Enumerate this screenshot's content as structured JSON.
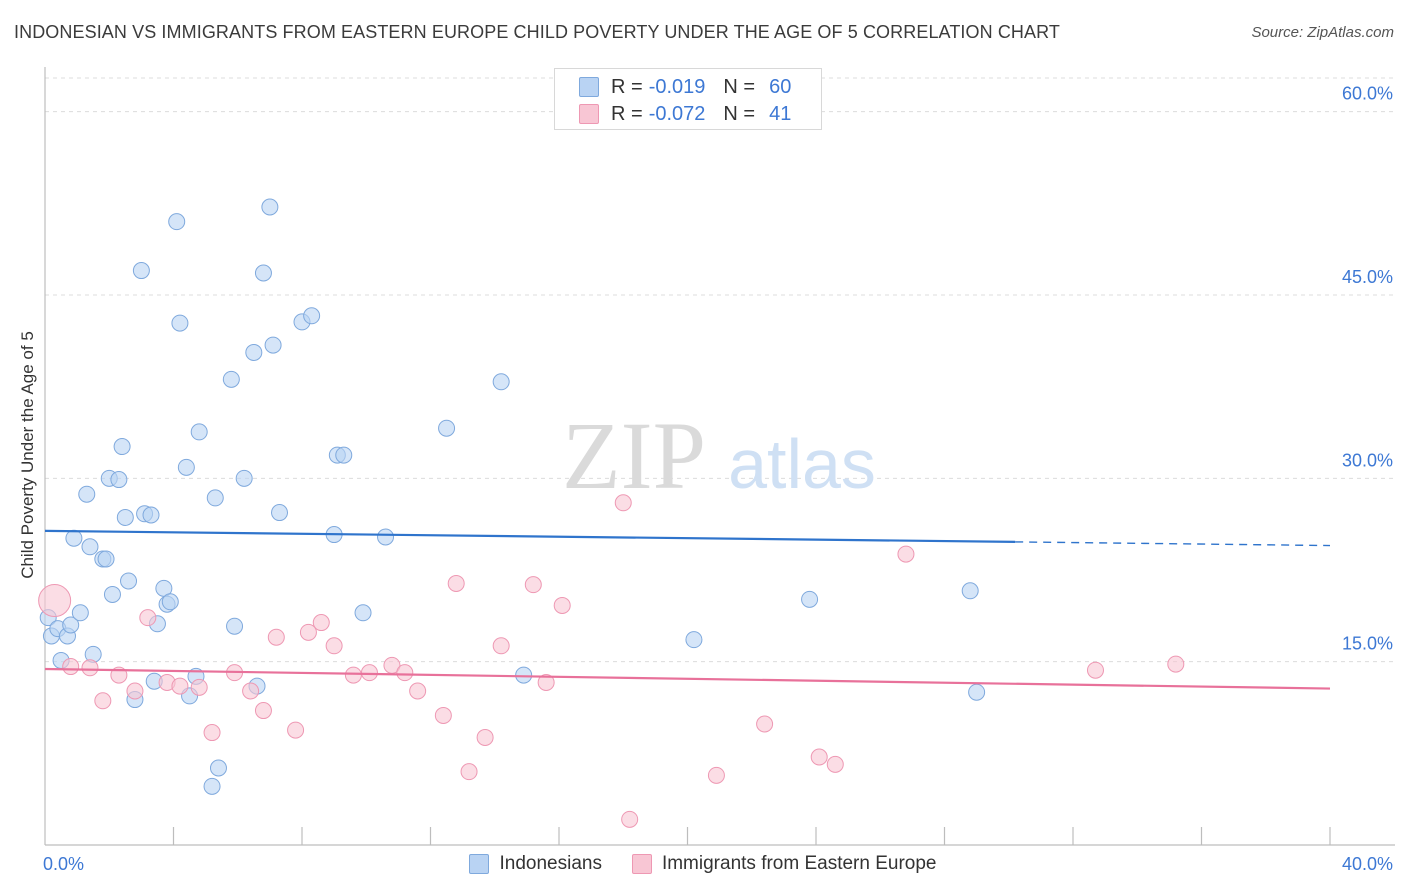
{
  "title": "INDONESIAN VS IMMIGRANTS FROM EASTERN EUROPE CHILD POVERTY UNDER THE AGE OF 5 CORRELATION CHART",
  "source": "Source: ZipAtlas.com",
  "watermark": {
    "zip": "ZIP",
    "atlas": "atlas"
  },
  "colors": {
    "blue_fill": "#b9d3f3",
    "blue_stroke": "#7fa9dd",
    "blue_line": "#2f74cc",
    "pink_fill": "#f8c6d4",
    "pink_stroke": "#ee98b3",
    "pink_line": "#e8719a",
    "value_text": "#3d78d4",
    "grid": "#dcdcdc"
  },
  "stats": [
    {
      "r_label": "R =",
      "r_value": "-0.019",
      "n_label": "N =",
      "n_value": "60",
      "series": "blue"
    },
    {
      "r_label": "R =",
      "r_value": "-0.072",
      "n_label": "N =",
      "n_value": "41",
      "series": "pink"
    }
  ],
  "legend": [
    {
      "label": "Indonesians",
      "series": "blue"
    },
    {
      "label": "Immigrants from Eastern Europe",
      "series": "pink"
    }
  ],
  "chart_data": {
    "type": "scatter",
    "title": "INDONESIAN VS IMMIGRANTS FROM EASTERN EUROPE CHILD POVERTY UNDER THE AGE OF 5 CORRELATION CHART",
    "xlabel": "",
    "ylabel": "Child Poverty Under the Age of 5",
    "xlim": [
      0,
      40
    ],
    "ylim": [
      0,
      63
    ],
    "x_tick_labels": [
      {
        "value": 0,
        "label": "0.0%"
      },
      {
        "value": 40,
        "label": "40.0%"
      }
    ],
    "y_tick_labels": [
      {
        "value": 15,
        "label": "15.0%"
      },
      {
        "value": 30,
        "label": "30.0%"
      },
      {
        "value": 45,
        "label": "45.0%"
      },
      {
        "value": 60,
        "label": "60.0%"
      }
    ],
    "x_minor_ticks": [
      4,
      8,
      12,
      16,
      20,
      24,
      28,
      32,
      36,
      40
    ],
    "series": [
      {
        "name": "Indonesians",
        "color": "blue",
        "trend": {
          "x0": 0,
          "y0": 25.7,
          "x1": 30.2,
          "y1": 24.8,
          "dashed_to_x": 40,
          "dashed_to_y": 24.5
        },
        "points": [
          [
            0.1,
            18.6
          ],
          [
            0.2,
            17.1
          ],
          [
            0.4,
            17.7
          ],
          [
            0.5,
            15.1
          ],
          [
            0.7,
            17.1
          ],
          [
            0.8,
            18.0
          ],
          [
            1.1,
            19.0
          ],
          [
            0.9,
            25.1
          ],
          [
            1.4,
            24.4
          ],
          [
            1.3,
            28.7
          ],
          [
            1.5,
            15.6
          ],
          [
            1.8,
            23.4
          ],
          [
            1.9,
            23.4
          ],
          [
            2.0,
            30.0
          ],
          [
            2.1,
            20.5
          ],
          [
            2.3,
            29.9
          ],
          [
            2.4,
            32.6
          ],
          [
            2.5,
            26.8
          ],
          [
            2.6,
            21.6
          ],
          [
            2.8,
            11.9
          ],
          [
            3.0,
            47.0
          ],
          [
            3.1,
            27.1
          ],
          [
            3.3,
            27.0
          ],
          [
            3.4,
            13.4
          ],
          [
            3.5,
            18.1
          ],
          [
            3.7,
            21.0
          ],
          [
            3.8,
            19.7
          ],
          [
            3.9,
            19.9
          ],
          [
            4.1,
            51.0
          ],
          [
            4.2,
            42.7
          ],
          [
            4.4,
            30.9
          ],
          [
            4.5,
            12.2
          ],
          [
            4.7,
            13.8
          ],
          [
            4.8,
            33.8
          ],
          [
            5.2,
            4.8
          ],
          [
            5.3,
            28.4
          ],
          [
            5.4,
            6.3
          ],
          [
            5.8,
            38.1
          ],
          [
            5.9,
            17.9
          ],
          [
            6.2,
            30.0
          ],
          [
            6.5,
            40.3
          ],
          [
            6.6,
            13.0
          ],
          [
            6.8,
            46.8
          ],
          [
            7.0,
            52.2
          ],
          [
            7.1,
            40.9
          ],
          [
            7.3,
            27.2
          ],
          [
            8.0,
            42.8
          ],
          [
            8.3,
            43.3
          ],
          [
            9.0,
            25.4
          ],
          [
            9.1,
            31.9
          ],
          [
            9.3,
            31.9
          ],
          [
            9.9,
            19.0
          ],
          [
            10.6,
            25.2
          ],
          [
            12.5,
            34.1
          ],
          [
            14.2,
            37.9
          ],
          [
            14.9,
            13.9
          ],
          [
            20.2,
            16.8
          ],
          [
            23.8,
            20.1
          ],
          [
            28.8,
            20.8
          ],
          [
            29.0,
            12.5
          ]
        ]
      },
      {
        "name": "Immigrants from Eastern Europe",
        "color": "pink",
        "trend": {
          "x0": 0,
          "y0": 14.4,
          "x1": 40,
          "y1": 12.8
        },
        "points": [
          [
            0.3,
            20.0
          ],
          [
            0.8,
            14.6
          ],
          [
            1.4,
            14.5
          ],
          [
            1.8,
            11.8
          ],
          [
            2.3,
            13.9
          ],
          [
            2.8,
            12.6
          ],
          [
            3.2,
            18.6
          ],
          [
            3.8,
            13.3
          ],
          [
            4.2,
            13.0
          ],
          [
            4.8,
            12.9
          ],
          [
            5.2,
            9.2
          ],
          [
            5.9,
            14.1
          ],
          [
            6.4,
            12.6
          ],
          [
            6.8,
            11.0
          ],
          [
            7.2,
            17.0
          ],
          [
            7.8,
            9.4
          ],
          [
            8.2,
            17.4
          ],
          [
            8.6,
            18.2
          ],
          [
            9.0,
            16.3
          ],
          [
            9.6,
            13.9
          ],
          [
            10.1,
            14.1
          ],
          [
            10.8,
            14.7
          ],
          [
            11.2,
            14.1
          ],
          [
            11.6,
            12.6
          ],
          [
            12.4,
            10.6
          ],
          [
            12.8,
            21.4
          ],
          [
            13.2,
            6.0
          ],
          [
            13.7,
            8.8
          ],
          [
            14.2,
            16.3
          ],
          [
            15.2,
            21.3
          ],
          [
            15.6,
            13.3
          ],
          [
            16.1,
            19.6
          ],
          [
            18.0,
            28.0
          ],
          [
            18.2,
            2.1
          ],
          [
            20.9,
            5.7
          ],
          [
            22.4,
            9.9
          ],
          [
            24.1,
            7.2
          ],
          [
            24.6,
            6.6
          ],
          [
            26.8,
            23.8
          ],
          [
            32.7,
            14.3
          ],
          [
            35.2,
            14.8
          ]
        ]
      }
    ]
  }
}
